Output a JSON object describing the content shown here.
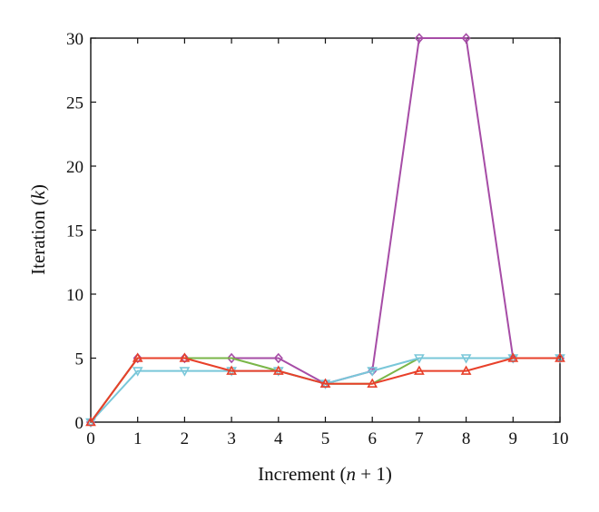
{
  "chart_data": {
    "type": "line",
    "title": "",
    "xlabel_parts": [
      "Increment (",
      "n",
      " + 1)"
    ],
    "ylabel_parts": [
      "Iteration (",
      "k",
      ")"
    ],
    "xlim": [
      0,
      10
    ],
    "ylim": [
      0,
      30
    ],
    "x_ticks": [
      0,
      1,
      2,
      3,
      4,
      5,
      6,
      7,
      8,
      9,
      10
    ],
    "y_ticks": [
      0,
      5,
      10,
      15,
      20,
      25,
      30
    ],
    "grid": false,
    "legend": "none",
    "x": [
      0,
      1,
      2,
      3,
      4,
      5,
      6,
      7,
      8,
      9,
      10
    ],
    "series": [
      {
        "color": "#a64ca6",
        "marker": "diamond",
        "values": [
          0,
          5,
          5,
          5,
          5,
          3,
          4,
          30,
          30,
          5,
          5
        ]
      },
      {
        "color": "#7ab648",
        "marker": "none",
        "values": [
          0,
          5,
          5,
          5,
          4,
          3,
          3,
          5,
          5,
          5,
          5
        ]
      },
      {
        "color": "#79c7d9",
        "marker": "triangle-down",
        "values": [
          0,
          4,
          4,
          4,
          4,
          3,
          4,
          5,
          5,
          5,
          5
        ]
      },
      {
        "color": "#e8402a",
        "marker": "triangle-up",
        "values": [
          0,
          5,
          5,
          4,
          4,
          3,
          3,
          4,
          4,
          5,
          5
        ]
      }
    ]
  }
}
